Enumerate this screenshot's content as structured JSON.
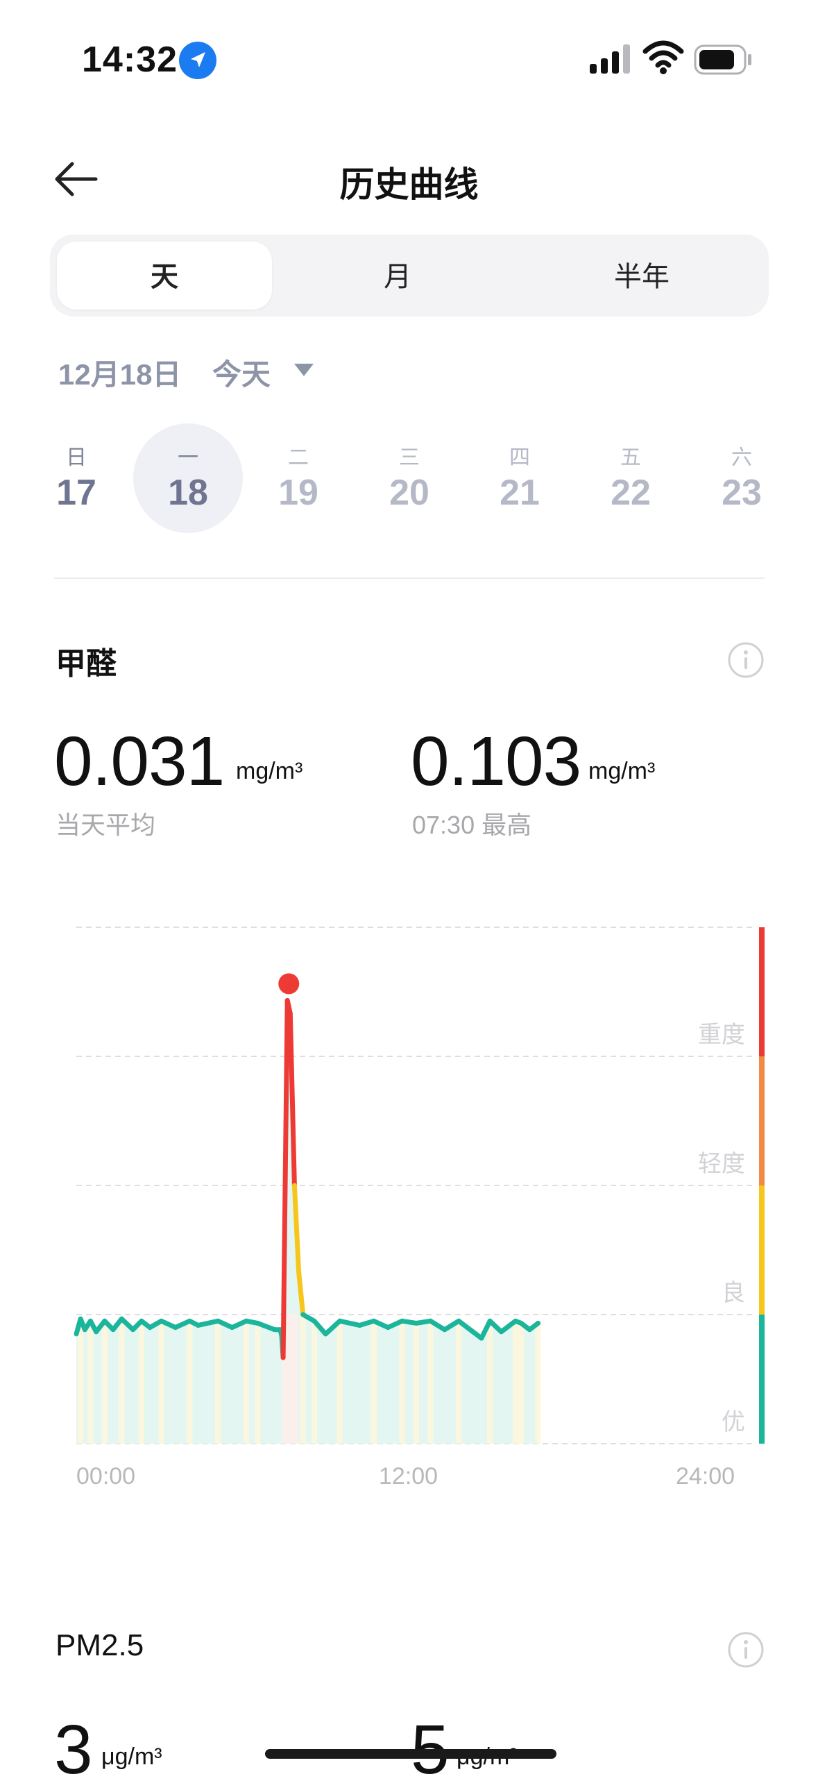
{
  "status": {
    "time": "14:32"
  },
  "header": {
    "title": "历史曲线",
    "back_icon": "back-arrow-icon"
  },
  "tabs": [
    {
      "label": "天",
      "active": true
    },
    {
      "label": "月",
      "active": false
    },
    {
      "label": "半年",
      "active": false
    }
  ],
  "date": {
    "label": "12月18日",
    "today": "今天"
  },
  "week": [
    {
      "weekday": "日",
      "day": "17"
    },
    {
      "weekday": "一",
      "day": "18",
      "selected": true
    },
    {
      "weekday": "二",
      "day": "19"
    },
    {
      "weekday": "三",
      "day": "20"
    },
    {
      "weekday": "四",
      "day": "21"
    },
    {
      "weekday": "五",
      "day": "22"
    },
    {
      "weekday": "六",
      "day": "23"
    }
  ],
  "formaldehyde": {
    "title": "甲醛",
    "avg_value": "0.031",
    "avg_unit": "mg/m³",
    "avg_label": "当天平均",
    "max_value": "0.103",
    "max_unit": "mg/m³",
    "max_label": "07:30 最高"
  },
  "chart_data": {
    "type": "line",
    "x_ticks": [
      "00:00",
      "12:00",
      "24:00"
    ],
    "level_labels": [
      "重度",
      "轻度",
      "良",
      "优"
    ],
    "level_colors": {
      "excellent": "#1bb59b",
      "good": "#f7c61d",
      "light": "#f28a46",
      "heavy": "#ee3a35"
    },
    "x_hours": [
      0,
      0.15,
      0.3,
      0.5,
      0.7,
      1,
      1.3,
      1.6,
      2,
      2.3,
      2.6,
      3,
      3.5,
      4,
      4.3,
      5,
      5.5,
      6,
      6.4,
      6.8,
      7,
      7.2,
      7.25,
      7.3,
      7.45,
      7.55,
      7.7,
      7.85,
      8,
      8.4,
      8.8,
      9.3,
      10,
      10.5,
      11,
      11.5,
      12,
      12.5,
      13,
      13.5,
      14,
      14.3,
      14.6,
      15,
      15.5,
      15.7,
      16,
      16.3
    ],
    "values": [
      0.0255,
      0.029,
      0.0265,
      0.0285,
      0.026,
      0.0285,
      0.0265,
      0.029,
      0.0265,
      0.0285,
      0.027,
      0.0285,
      0.027,
      0.0285,
      0.0275,
      0.0285,
      0.027,
      0.0285,
      0.028,
      0.027,
      0.0265,
      0.0265,
      0.025,
      0.02,
      0.103,
      0.1,
      0.06,
      0.04,
      0.03,
      0.0285,
      0.0255,
      0.0285,
      0.0275,
      0.0285,
      0.027,
      0.0285,
      0.028,
      0.0285,
      0.0265,
      0.0285,
      0.026,
      0.0245,
      0.0285,
      0.026,
      0.0285,
      0.028,
      0.0265,
      0.028
    ],
    "peak": {
      "time": "07:30",
      "value": 0.103
    },
    "ylim": [
      0,
      0.12
    ],
    "xlim": [
      0,
      24
    ]
  },
  "pm25": {
    "title": "PM2.5",
    "avg_value": "3",
    "avg_unit": "μg/m³",
    "max_value": "5",
    "max_unit": "μg/m³"
  }
}
